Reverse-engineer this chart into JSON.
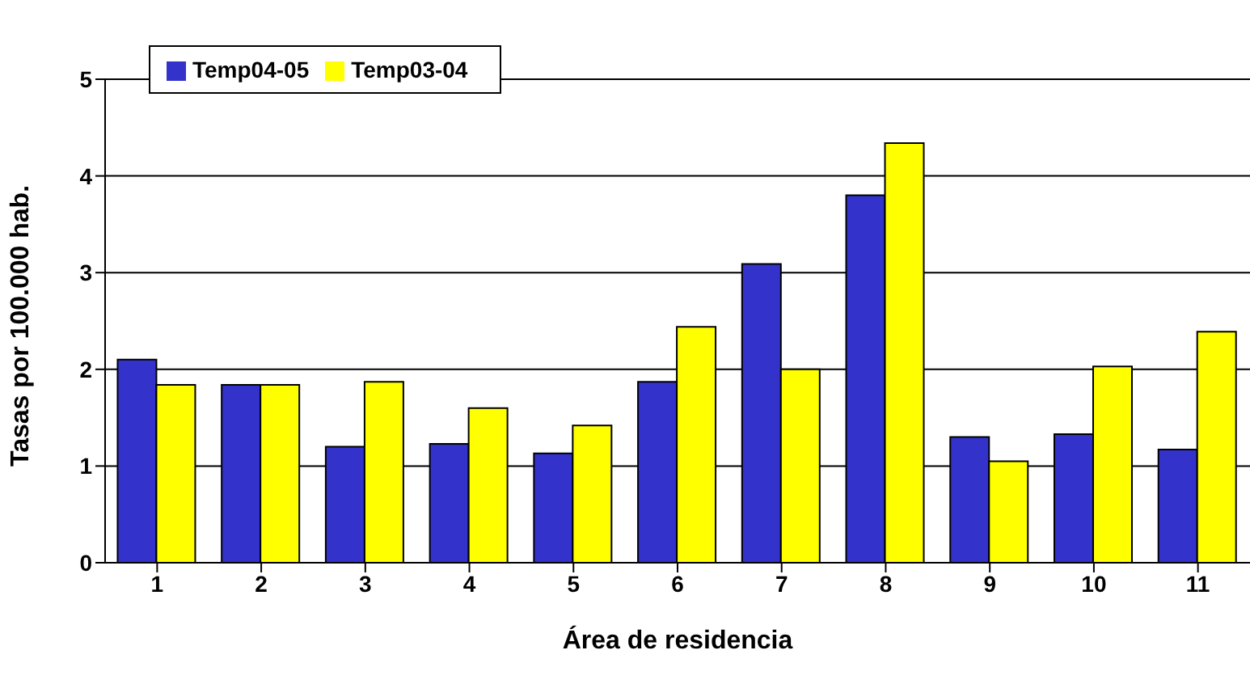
{
  "chart_data": {
    "type": "bar",
    "xlabel": "Área de residencia",
    "ylabel": "Tasas por 100.000 hab.",
    "categories": [
      "1",
      "2",
      "3",
      "4",
      "5",
      "6",
      "7",
      "8",
      "9",
      "10",
      "11"
    ],
    "series": [
      {
        "name": "Temp04-05",
        "color": "#3333cc",
        "values": [
          2.1,
          1.84,
          1.2,
          1.23,
          1.13,
          1.87,
          3.09,
          3.8,
          1.3,
          1.33,
          1.17
        ]
      },
      {
        "name": "Temp03-04",
        "color": "#ffff00",
        "values": [
          1.84,
          1.84,
          1.87,
          1.6,
          1.42,
          2.44,
          2.0,
          4.34,
          1.05,
          2.03,
          2.39
        ]
      }
    ],
    "ylim": [
      0,
      5
    ],
    "yticks": [
      0,
      1,
      2,
      3,
      4,
      5
    ],
    "grid": "y",
    "legend": "top left"
  }
}
